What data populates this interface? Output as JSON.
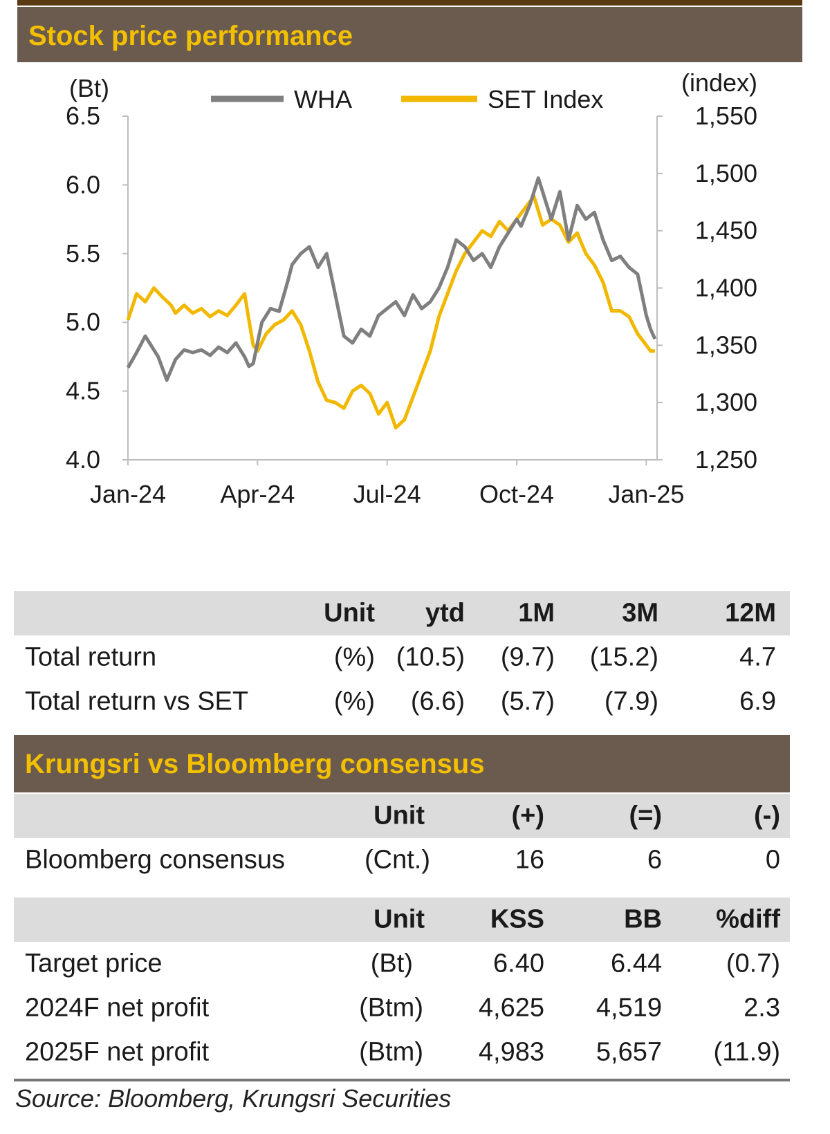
{
  "colors": {
    "header_bg": "#6b5a4e",
    "header_text": "#f3c000",
    "wha": "#7f7f7f",
    "set": "#f2b800",
    "table_head_bg": "#dcdcdc"
  },
  "section1": {
    "title": "Stock price performance"
  },
  "chart_data": {
    "type": "line",
    "title": "Stock price performance",
    "left_axis_label": "(Bt)",
    "right_axis_label": "(index)",
    "left_ylim": [
      4.0,
      6.5
    ],
    "right_ylim": [
      1250,
      1550
    ],
    "left_ticks": [
      "6.5",
      "6.0",
      "5.5",
      "5.0",
      "4.5",
      "4.0"
    ],
    "left_tick_values": [
      6.5,
      6.0,
      5.5,
      5.0,
      4.5,
      4.0
    ],
    "right_ticks": [
      "1,550",
      "1,500",
      "1,450",
      "1,400",
      "1,350",
      "1,300",
      "1,250"
    ],
    "right_tick_values": [
      1550,
      1500,
      1450,
      1400,
      1350,
      1300,
      1250
    ],
    "x_ticks": [
      "Jan-24",
      "Apr-24",
      "Jul-24",
      "Oct-24",
      "Jan-25"
    ],
    "x_tick_values": [
      0,
      3,
      6,
      9,
      12
    ],
    "xlim": [
      0,
      12.25
    ],
    "legend": [
      "WHA",
      "SET Index"
    ],
    "series": [
      {
        "name": "WHA",
        "axis": "left",
        "x": [
          0,
          0.2,
          0.4,
          0.5,
          0.7,
          0.9,
          1.1,
          1.3,
          1.5,
          1.7,
          1.9,
          2.1,
          2.3,
          2.5,
          2.7,
          2.8,
          2.9,
          3.0,
          3.1,
          3.3,
          3.5,
          3.7,
          3.8,
          4.0,
          4.2,
          4.4,
          4.6,
          4.8,
          5.0,
          5.2,
          5.4,
          5.6,
          5.8,
          6.0,
          6.2,
          6.4,
          6.6,
          6.8,
          7.0,
          7.2,
          7.4,
          7.6,
          7.8,
          8.0,
          8.2,
          8.4,
          8.6,
          8.8,
          9.0,
          9.1,
          9.3,
          9.5,
          9.6,
          9.8,
          10.0,
          10.2,
          10.4,
          10.6,
          10.8,
          11.0,
          11.2,
          11.4,
          11.6,
          11.8,
          12.0,
          12.1,
          12.2
        ],
        "values": [
          4.67,
          4.78,
          4.9,
          4.85,
          4.75,
          4.58,
          4.73,
          4.8,
          4.78,
          4.8,
          4.76,
          4.82,
          4.78,
          4.85,
          4.75,
          4.68,
          4.7,
          4.85,
          5.0,
          5.1,
          5.08,
          5.3,
          5.42,
          5.5,
          5.55,
          5.4,
          5.5,
          5.2,
          4.9,
          4.85,
          4.95,
          4.9,
          5.05,
          5.1,
          5.15,
          5.05,
          5.2,
          5.1,
          5.15,
          5.25,
          5.4,
          5.6,
          5.55,
          5.45,
          5.5,
          5.4,
          5.55,
          5.65,
          5.75,
          5.7,
          5.85,
          6.05,
          5.95,
          5.75,
          5.95,
          5.6,
          5.85,
          5.75,
          5.8,
          5.6,
          5.45,
          5.48,
          5.4,
          5.35,
          5.05,
          4.95,
          4.88
        ]
      },
      {
        "name": "SET Index",
        "axis": "right",
        "x": [
          0,
          0.2,
          0.4,
          0.6,
          0.8,
          1.0,
          1.1,
          1.3,
          1.5,
          1.7,
          1.9,
          2.1,
          2.3,
          2.5,
          2.7,
          2.8,
          2.9,
          3.0,
          3.2,
          3.4,
          3.6,
          3.8,
          4.0,
          4.2,
          4.4,
          4.6,
          4.8,
          5.0,
          5.2,
          5.4,
          5.6,
          5.8,
          6.0,
          6.2,
          6.4,
          6.6,
          6.8,
          7.0,
          7.2,
          7.4,
          7.6,
          7.8,
          8.0,
          8.2,
          8.4,
          8.6,
          8.8,
          9.0,
          9.2,
          9.4,
          9.6,
          9.8,
          10.0,
          10.2,
          10.4,
          10.6,
          10.8,
          11.0,
          11.2,
          11.4,
          11.6,
          11.8,
          12.0,
          12.1,
          12.2
        ],
        "values": [
          1372,
          1395,
          1388,
          1400,
          1392,
          1385,
          1378,
          1385,
          1378,
          1382,
          1375,
          1380,
          1376,
          1385,
          1395,
          1372,
          1350,
          1345,
          1360,
          1368,
          1372,
          1380,
          1368,
          1345,
          1318,
          1302,
          1300,
          1295,
          1310,
          1315,
          1308,
          1290,
          1300,
          1278,
          1285,
          1305,
          1325,
          1345,
          1375,
          1395,
          1415,
          1430,
          1440,
          1450,
          1445,
          1458,
          1450,
          1460,
          1470,
          1480,
          1455,
          1460,
          1455,
          1440,
          1448,
          1430,
          1420,
          1405,
          1380,
          1380,
          1375,
          1360,
          1350,
          1345,
          1345
        ]
      }
    ]
  },
  "returns_table": {
    "headers": [
      "",
      "Unit",
      "ytd",
      "1M",
      "3M",
      "12M"
    ],
    "rows": [
      [
        "Total return",
        "(%)",
        "(10.5)",
        "(9.7)",
        "(15.2)",
        "4.7"
      ],
      [
        "Total return vs SET",
        "(%)",
        "(6.6)",
        "(5.7)",
        "(7.9)",
        "6.9"
      ]
    ]
  },
  "section2": {
    "title": "Krungsri vs Bloomberg consensus"
  },
  "consensus_table": {
    "headers": [
      "",
      "Unit",
      "(+)",
      "(=)",
      "(-)"
    ],
    "rows": [
      [
        "Bloomberg consensus",
        "(Cnt.)",
        "16",
        "6",
        "0"
      ]
    ]
  },
  "estimates_table": {
    "headers": [
      "",
      "Unit",
      "KSS",
      "BB",
      "%diff"
    ],
    "rows": [
      [
        "Target price",
        "(Bt)",
        "6.40",
        "6.44",
        "(0.7)"
      ],
      [
        "2024F net profit",
        "(Btm)",
        "4,625",
        "4,519",
        "2.3"
      ],
      [
        "2025F net profit",
        "(Btm)",
        "4,983",
        "5,657",
        "(11.9)"
      ]
    ]
  },
  "source": "Source: Bloomberg, Krungsri Securities"
}
